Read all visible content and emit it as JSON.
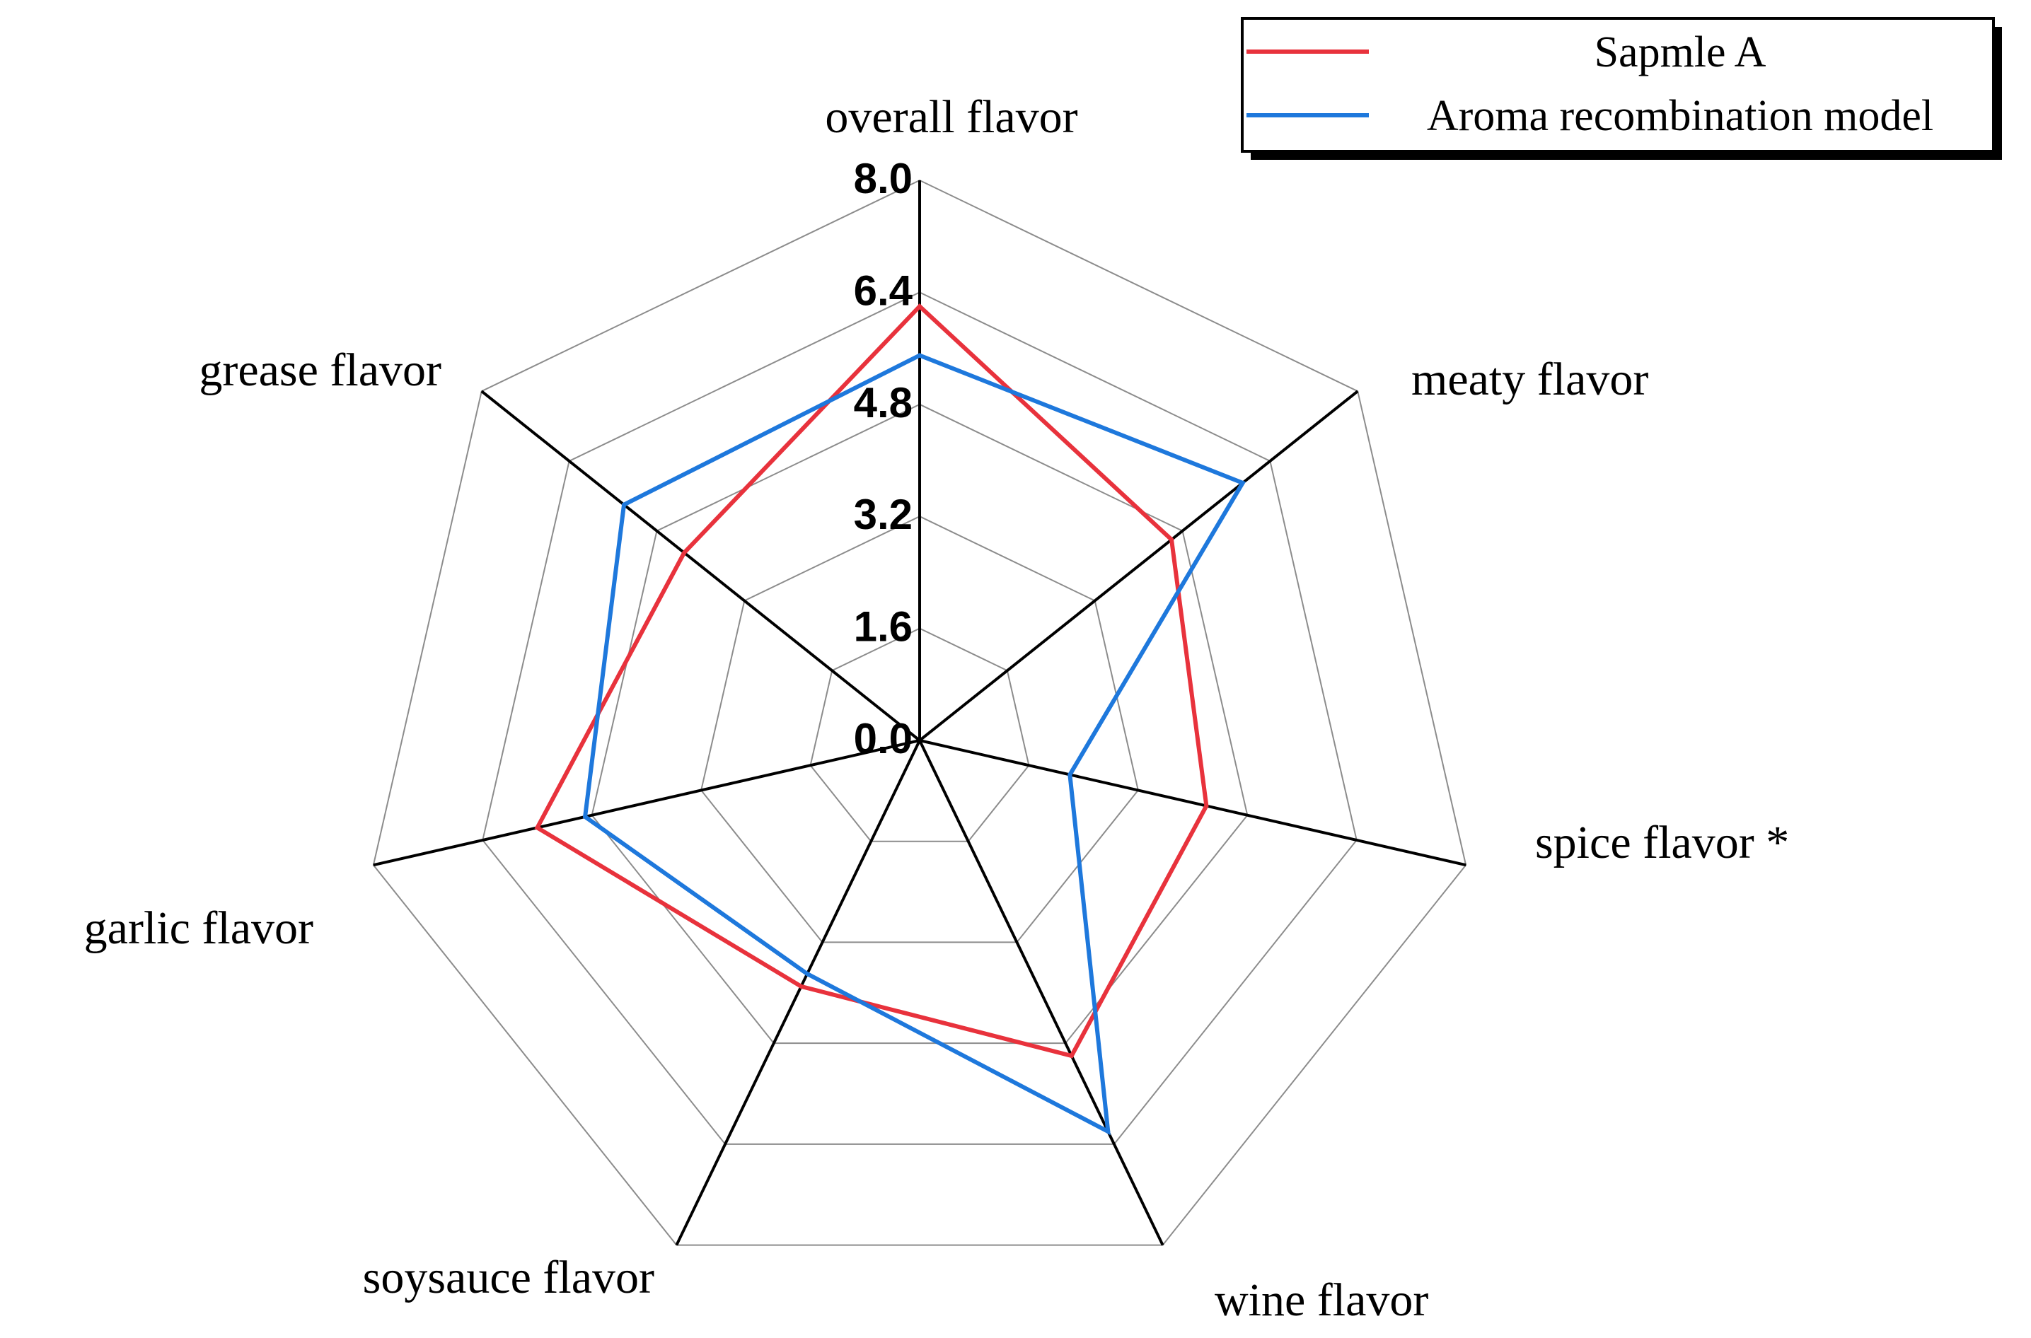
{
  "chart_data": {
    "type": "radar",
    "axes": [
      "overall flavor",
      "meaty flavor",
      "spice flavor *",
      "wine flavor",
      "soysauce flavor",
      "garlic flavor",
      "grease flavor"
    ],
    "range": [
      0,
      8
    ],
    "ticks": [
      "0.0",
      "1.6",
      "3.2",
      "4.8",
      "6.4",
      "8.0"
    ],
    "grid": true,
    "legend_position": "top-right",
    "series": [
      {
        "name": "Sapmle A",
        "color": "#e8323c",
        "values": [
          6.2,
          4.6,
          4.2,
          5.0,
          3.9,
          5.6,
          4.3
        ]
      },
      {
        "name": "Aroma recombination model",
        "color": "#1e78dc",
        "values": [
          5.5,
          5.9,
          2.2,
          6.2,
          3.7,
          4.9,
          5.4
        ]
      }
    ]
  }
}
